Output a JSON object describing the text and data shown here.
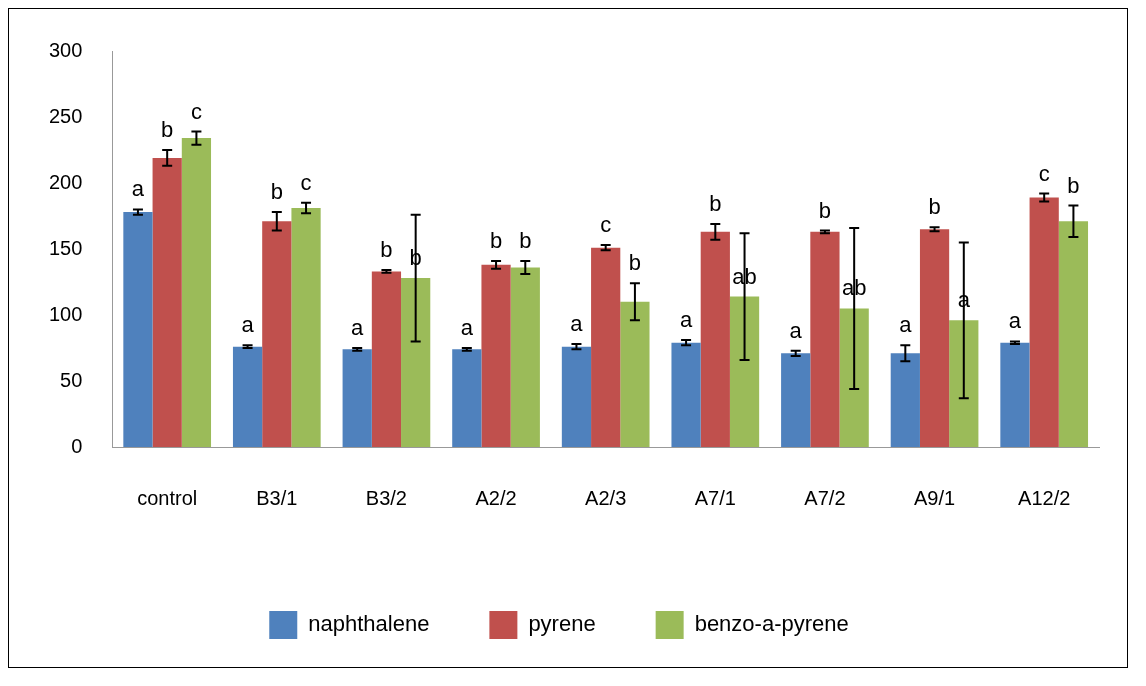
{
  "chart_data": {
    "type": "bar",
    "categories": [
      "control",
      "B3/1",
      "B3/2",
      "A2/2",
      "A2/3",
      "A7/1",
      "A7/2",
      "A9/1",
      "A12/2"
    ],
    "series": [
      {
        "name": "naphthalene",
        "color": "#4f81bd",
        "values": [
          178,
          76,
          74,
          74,
          76,
          79,
          71,
          71,
          79
        ],
        "errors": [
          2,
          1,
          1,
          1,
          2,
          2,
          2,
          6,
          1
        ],
        "value_labels": [
          "a",
          "a",
          "a",
          "a",
          "a",
          "a",
          "a",
          "a",
          "a"
        ]
      },
      {
        "name": "pyrene",
        "color": "#c0504d",
        "values": [
          219,
          171,
          133,
          138,
          151,
          163,
          163,
          165,
          189
        ],
        "errors": [
          6,
          7,
          1,
          3,
          2,
          6,
          1,
          1.5,
          3
        ],
        "value_labels": [
          "b",
          "b",
          "b",
          "b",
          "c",
          "b",
          "b",
          "b",
          "c"
        ]
      },
      {
        "name": "benzo-a-pyrene",
        "color": "#9bbb59",
        "values": [
          234,
          181,
          128,
          136,
          110,
          114,
          105,
          96,
          171
        ],
        "errors": [
          5,
          4,
          48,
          5,
          14,
          48,
          61,
          59,
          12
        ],
        "value_labels": [
          "c",
          "c",
          "b",
          "b",
          "b",
          "ab",
          "ab",
          "a",
          "b"
        ]
      }
    ],
    "ylim": [
      0,
      300
    ],
    "yticks": [
      0,
      50,
      100,
      150,
      200,
      250,
      300
    ],
    "grid": false,
    "legend": "bottom"
  }
}
